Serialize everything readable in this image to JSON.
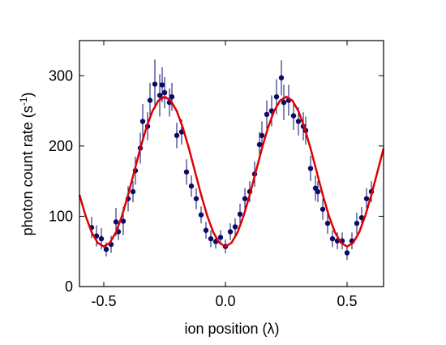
{
  "chart_data": {
    "type": "scatter",
    "xlabel": "ion position (λ)",
    "ylabel": {
      "text": "photon count rate (s",
      "sup": "-1",
      "end": ")"
    },
    "xlim": [
      -0.6,
      0.65
    ],
    "ylim": [
      0,
      350
    ],
    "xticks": [
      -0.5,
      {
        "value": 0,
        "label": "0.0"
      },
      0.5
    ],
    "yticks": [
      0,
      100,
      200,
      300
    ],
    "grid": false,
    "series": [
      {
        "type": "scatter",
        "color": "#0b0b6b",
        "x": [
          -0.55,
          -0.53,
          -0.51,
          -0.49,
          -0.47,
          -0.45,
          -0.44,
          -0.42,
          -0.4,
          -0.38,
          -0.37,
          -0.35,
          -0.34,
          -0.32,
          -0.31,
          -0.29,
          -0.27,
          -0.26,
          -0.25,
          -0.23,
          -0.22,
          -0.2,
          -0.18,
          -0.16,
          -0.14,
          -0.12,
          -0.1,
          -0.08,
          -0.06,
          -0.04,
          -0.02,
          0.0,
          0.02,
          0.04,
          0.06,
          0.08,
          0.1,
          0.12,
          0.14,
          0.15,
          0.17,
          0.19,
          0.21,
          0.23,
          0.24,
          0.26,
          0.28,
          0.3,
          0.32,
          0.33,
          0.35,
          0.37,
          0.38,
          0.4,
          0.42,
          0.44,
          0.46,
          0.48,
          0.5,
          0.52,
          0.54,
          0.56,
          0.58,
          0.6
        ],
        "values": [
          84,
          72,
          68,
          53,
          60,
          92,
          78,
          93,
          125,
          135,
          165,
          197,
          235,
          228,
          265,
          288,
          272,
          287,
          276,
          262,
          270,
          215,
          220,
          163,
          143,
          125,
          102,
          80,
          68,
          64,
          70,
          57,
          78,
          85,
          103,
          125,
          135,
          160,
          202,
          215,
          245,
          250,
          270,
          297,
          262,
          265,
          243,
          235,
          228,
          222,
          168,
          140,
          135,
          110,
          90,
          68,
          65,
          65,
          48,
          65,
          90,
          98,
          125,
          135
        ],
        "errors": [
          15,
          15,
          15,
          10,
          12,
          20,
          12,
          20,
          18,
          15,
          20,
          22,
          25,
          20,
          25,
          35,
          30,
          25,
          22,
          20,
          20,
          18,
          18,
          18,
          15,
          15,
          12,
          12,
          12,
          10,
          10,
          10,
          12,
          12,
          15,
          15,
          15,
          18,
          18,
          20,
          20,
          22,
          25,
          25,
          25,
          22,
          20,
          20,
          20,
          20,
          18,
          18,
          15,
          15,
          15,
          12,
          12,
          12,
          10,
          12,
          15,
          15,
          15,
          15
        ]
      },
      {
        "type": "line",
        "color": "#e00000",
        "x": [
          -0.6,
          -0.575,
          -0.55,
          -0.525,
          -0.5,
          -0.475,
          -0.45,
          -0.425,
          -0.4,
          -0.375,
          -0.35,
          -0.325,
          -0.3,
          -0.275,
          -0.25,
          -0.225,
          -0.2,
          -0.175,
          -0.15,
          -0.125,
          -0.1,
          -0.075,
          -0.05,
          -0.025,
          0,
          0.025,
          0.05,
          0.075,
          0.1,
          0.125,
          0.15,
          0.175,
          0.2,
          0.225,
          0.25,
          0.275,
          0.3,
          0.325,
          0.35,
          0.375,
          0.4,
          0.425,
          0.45,
          0.475,
          0.5,
          0.525,
          0.55,
          0.575,
          0.6,
          0.625,
          0.65
        ],
        "values": [
          130.6,
          100.9,
          77.3,
          62.2,
          57,
          62.2,
          77.3,
          100.9,
          130.6,
          163.5,
          196.4,
          226.1,
          249.7,
          264.8,
          270,
          264.8,
          249.7,
          226.1,
          196.4,
          163.5,
          130.6,
          100.9,
          77.3,
          62.2,
          57,
          62.2,
          77.3,
          100.9,
          130.6,
          163.5,
          196.4,
          226.1,
          249.7,
          264.8,
          270,
          264.8,
          249.7,
          226.1,
          196.4,
          163.5,
          130.6,
          100.9,
          77.3,
          62.2,
          57,
          62.2,
          77.3,
          100.9,
          130.6,
          163.5,
          196.4
        ]
      }
    ]
  }
}
